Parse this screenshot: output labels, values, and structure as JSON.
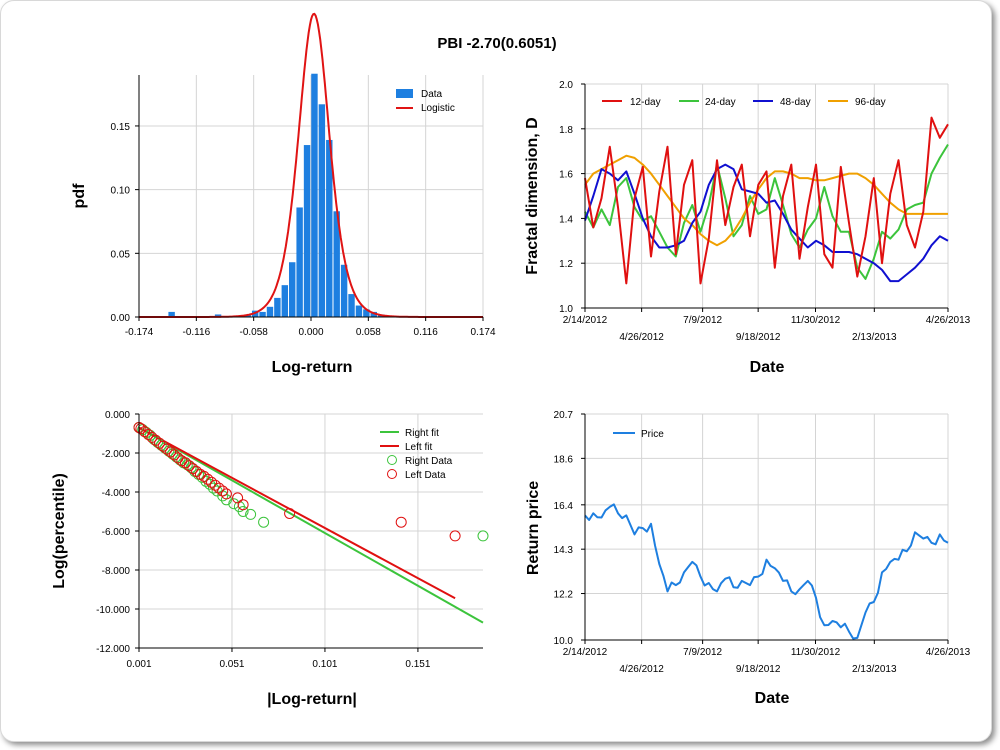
{
  "page": {
    "title": "PBI -2.70(0.6051)"
  },
  "chart_data": [
    {
      "id": "histogram",
      "type": "bar",
      "xlabel": "Log-return",
      "ylabel": "pdf",
      "xlim": [
        -0.174,
        0.174
      ],
      "ylim": [
        0,
        0.19
      ],
      "x_ticks": [
        "-0.174",
        "-0.116",
        "-0.058",
        "0.000",
        "0.058",
        "0.116",
        "0.174"
      ],
      "y_ticks": [
        "0.00",
        "0.05",
        "0.10",
        "0.15"
      ],
      "grid": true,
      "legend": "top-right",
      "bin_width": 0.0075,
      "bins": [
        {
          "x": -0.141,
          "y": 0.004
        },
        {
          "x": -0.094,
          "y": 0.002
        },
        {
          "x": -0.064,
          "y": 0.002
        },
        {
          "x": -0.0565,
          "y": 0.005
        },
        {
          "x": -0.049,
          "y": 0.004
        },
        {
          "x": -0.0415,
          "y": 0.008
        },
        {
          "x": -0.034,
          "y": 0.015
        },
        {
          "x": -0.0265,
          "y": 0.025
        },
        {
          "x": -0.019,
          "y": 0.043
        },
        {
          "x": -0.0115,
          "y": 0.086
        },
        {
          "x": -0.004,
          "y": 0.135
        },
        {
          "x": 0.0035,
          "y": 0.191
        },
        {
          "x": 0.011,
          "y": 0.167
        },
        {
          "x": 0.0185,
          "y": 0.139
        },
        {
          "x": 0.026,
          "y": 0.083
        },
        {
          "x": 0.0335,
          "y": 0.041
        },
        {
          "x": 0.041,
          "y": 0.018
        },
        {
          "x": 0.0485,
          "y": 0.009
        },
        {
          "x": 0.056,
          "y": 0.006
        },
        {
          "x": 0.0635,
          "y": 0.004
        },
        {
          "x": 0.071,
          "y": 0.002
        },
        {
          "x": 0.0785,
          "y": 0.001
        }
      ],
      "series": [
        {
          "name": "Data",
          "color": "#1e7fe0"
        },
        {
          "name": "Logistic",
          "color": "#e01414",
          "location": 0.003,
          "scale": 0.0105
        }
      ]
    },
    {
      "id": "fractal",
      "type": "line",
      "xlabel": "Date",
      "ylabel": "Fractal dimension, D",
      "ylim": [
        1.0,
        2.0
      ],
      "x_ticks_top": [
        "2/14/2012",
        "7/9/2012",
        "11/30/2012",
        "4/26/2013"
      ],
      "x_ticks_bottom": [
        "4/26/2012",
        "9/18/2012",
        "2/13/2013"
      ],
      "y_ticks": [
        "1.0",
        "1.2",
        "1.4",
        "1.6",
        "1.8",
        "2.0"
      ],
      "grid": true,
      "legend": "top",
      "x_index": [
        0,
        7,
        14,
        21,
        28,
        35,
        42,
        49,
        56,
        63,
        70,
        77,
        84,
        91,
        98,
        105,
        112,
        119,
        126,
        133,
        140,
        147,
        154,
        161,
        168,
        175,
        182,
        189,
        196,
        203,
        210,
        217,
        224,
        231,
        238,
        245,
        252,
        259,
        266,
        273,
        280,
        287,
        294,
        301,
        308
      ],
      "series": [
        {
          "name": "12-day",
          "color": "#e01010",
          "values": [
            1.58,
            1.36,
            1.49,
            1.72,
            1.45,
            1.11,
            1.49,
            1.63,
            1.23,
            1.52,
            1.72,
            1.24,
            1.55,
            1.66,
            1.11,
            1.31,
            1.66,
            1.37,
            1.54,
            1.64,
            1.32,
            1.55,
            1.61,
            1.18,
            1.5,
            1.64,
            1.22,
            1.45,
            1.64,
            1.24,
            1.18,
            1.63,
            1.38,
            1.14,
            1.32,
            1.58,
            1.2,
            1.51,
            1.66,
            1.37,
            1.27,
            1.43,
            1.85,
            1.76,
            1.82
          ]
        },
        {
          "name": "24-day",
          "color": "#3cc43c",
          "values": [
            1.43,
            1.36,
            1.44,
            1.37,
            1.54,
            1.58,
            1.45,
            1.39,
            1.41,
            1.34,
            1.27,
            1.23,
            1.38,
            1.46,
            1.34,
            1.46,
            1.64,
            1.49,
            1.32,
            1.37,
            1.5,
            1.42,
            1.44,
            1.58,
            1.46,
            1.33,
            1.27,
            1.35,
            1.4,
            1.54,
            1.41,
            1.34,
            1.34,
            1.18,
            1.13,
            1.22,
            1.34,
            1.31,
            1.35,
            1.44,
            1.46,
            1.47,
            1.6,
            1.67,
            1.73
          ]
        },
        {
          "name": "48-day",
          "color": "#1010d0",
          "values": [
            1.39,
            1.5,
            1.62,
            1.6,
            1.57,
            1.61,
            1.51,
            1.4,
            1.32,
            1.27,
            1.27,
            1.28,
            1.3,
            1.38,
            1.43,
            1.55,
            1.62,
            1.64,
            1.62,
            1.53,
            1.52,
            1.51,
            1.47,
            1.48,
            1.42,
            1.35,
            1.31,
            1.27,
            1.3,
            1.28,
            1.25,
            1.25,
            1.25,
            1.24,
            1.22,
            1.2,
            1.17,
            1.12,
            1.12,
            1.15,
            1.18,
            1.22,
            1.28,
            1.32,
            1.3
          ]
        },
        {
          "name": "96-day",
          "color": "#f0a000",
          "values": [
            1.55,
            1.6,
            1.62,
            1.64,
            1.66,
            1.68,
            1.67,
            1.64,
            1.6,
            1.55,
            1.5,
            1.45,
            1.4,
            1.37,
            1.33,
            1.3,
            1.28,
            1.3,
            1.34,
            1.4,
            1.47,
            1.53,
            1.58,
            1.61,
            1.61,
            1.6,
            1.58,
            1.58,
            1.57,
            1.57,
            1.58,
            1.59,
            1.6,
            1.6,
            1.58,
            1.55,
            1.51,
            1.47,
            1.44,
            1.42,
            1.42,
            1.42,
            1.42,
            1.42,
            1.42
          ]
        }
      ]
    },
    {
      "id": "tail",
      "type": "scatter",
      "xlabel": "|Log-return|",
      "ylabel": "Log(percentile)",
      "xlim": [
        0.001,
        0.186
      ],
      "ylim": [
        -12.0,
        0.0
      ],
      "x_ticks": [
        "0.001",
        "0.051",
        "0.101",
        "0.151"
      ],
      "y_ticks": [
        "0.000",
        "-2.000",
        "-4.000",
        "-6.000",
        "-8.000",
        "-10.000",
        "-12.000"
      ],
      "grid": true,
      "legend": "top-right",
      "series": [
        {
          "name": "Right fit",
          "color": "#3cc43c",
          "points": [
            [
              0.001,
              -0.7
            ],
            [
              0.186,
              -10.7
            ]
          ]
        },
        {
          "name": "Left fit",
          "color": "#e01010",
          "points": [
            [
              0.001,
              -0.7
            ],
            [
              0.171,
              -9.45
            ]
          ]
        },
        {
          "name": "Right Data",
          "color": "#3cc43c",
          "points": [
            [
              0.001,
              -0.69
            ],
            [
              0.003,
              -0.8
            ],
            [
              0.005,
              -0.95
            ],
            [
              0.007,
              -1.1
            ],
            [
              0.009,
              -1.3
            ],
            [
              0.011,
              -1.45
            ],
            [
              0.013,
              -1.6
            ],
            [
              0.015,
              -1.75
            ],
            [
              0.017,
              -1.9
            ],
            [
              0.019,
              -2.05
            ],
            [
              0.021,
              -2.2
            ],
            [
              0.023,
              -2.35
            ],
            [
              0.025,
              -2.5
            ],
            [
              0.027,
              -2.6
            ],
            [
              0.029,
              -2.75
            ],
            [
              0.031,
              -2.95
            ],
            [
              0.033,
              -3.1
            ],
            [
              0.035,
              -3.25
            ],
            [
              0.037,
              -3.45
            ],
            [
              0.039,
              -3.6
            ],
            [
              0.041,
              -3.8
            ],
            [
              0.043,
              -3.95
            ],
            [
              0.046,
              -4.2
            ],
            [
              0.048,
              -4.4
            ],
            [
              0.052,
              -4.6
            ],
            [
              0.055,
              -4.75
            ],
            [
              0.057,
              -5.0
            ],
            [
              0.061,
              -5.15
            ],
            [
              0.068,
              -5.55
            ],
            [
              0.186,
              -6.25
            ]
          ]
        },
        {
          "name": "Left Data",
          "color": "#e01010",
          "points": [
            [
              0.001,
              -0.69
            ],
            [
              0.002,
              -0.75
            ],
            [
              0.004,
              -0.9
            ],
            [
              0.006,
              -1.05
            ],
            [
              0.008,
              -1.2
            ],
            [
              0.01,
              -1.35
            ],
            [
              0.012,
              -1.5
            ],
            [
              0.014,
              -1.65
            ],
            [
              0.016,
              -1.8
            ],
            [
              0.018,
              -1.95
            ],
            [
              0.02,
              -2.1
            ],
            [
              0.022,
              -2.25
            ],
            [
              0.024,
              -2.4
            ],
            [
              0.026,
              -2.5
            ],
            [
              0.028,
              -2.65
            ],
            [
              0.03,
              -2.8
            ],
            [
              0.032,
              -2.95
            ],
            [
              0.034,
              -3.1
            ],
            [
              0.036,
              -3.2
            ],
            [
              0.038,
              -3.35
            ],
            [
              0.04,
              -3.5
            ],
            [
              0.042,
              -3.65
            ],
            [
              0.044,
              -3.8
            ],
            [
              0.046,
              -3.95
            ],
            [
              0.048,
              -4.1
            ],
            [
              0.054,
              -4.3
            ],
            [
              0.057,
              -4.65
            ],
            [
              0.082,
              -5.1
            ],
            [
              0.142,
              -5.55
            ],
            [
              0.171,
              -6.25
            ]
          ]
        }
      ]
    },
    {
      "id": "price",
      "type": "line",
      "xlabel": "Date",
      "ylabel": "Return price",
      "ylim": [
        10.0,
        20.7
      ],
      "x_ticks_top": [
        "2/14/2012",
        "7/9/2012",
        "11/30/2012",
        "4/26/2013"
      ],
      "x_ticks_bottom": [
        "4/26/2012",
        "9/18/2012",
        "2/13/2013"
      ],
      "y_ticks": [
        "10.0",
        "12.2",
        "14.3",
        "16.4",
        "18.6",
        "20.7"
      ],
      "grid": true,
      "legend": "top-left",
      "x_index": [
        0,
        7,
        14,
        21,
        28,
        35,
        42,
        49,
        56,
        63,
        70,
        77,
        84,
        91,
        98,
        105,
        112,
        119,
        126,
        133,
        140,
        147,
        154,
        161,
        168,
        175,
        182,
        189,
        196,
        203,
        210,
        217,
        224,
        231,
        238,
        245,
        252,
        259,
        266,
        273,
        280,
        287,
        294,
        301,
        308
      ],
      "series": [
        {
          "name": "Price",
          "color": "#1e7fe0",
          "values": [
            15.9,
            16.0,
            15.8,
            16.3,
            16.0,
            15.9,
            15.0,
            15.3,
            15.5,
            13.6,
            12.3,
            12.6,
            13.2,
            13.7,
            13.0,
            12.7,
            12.3,
            12.9,
            12.5,
            12.8,
            12.6,
            13.0,
            13.8,
            13.4,
            12.8,
            12.3,
            12.4,
            12.8,
            12.0,
            10.7,
            10.9,
            10.6,
            10.4,
            10.1,
            11.3,
            11.8,
            13.2,
            13.7,
            13.8,
            14.2,
            15.1,
            14.8,
            14.6,
            15.0,
            14.6
          ]
        }
      ]
    }
  ]
}
